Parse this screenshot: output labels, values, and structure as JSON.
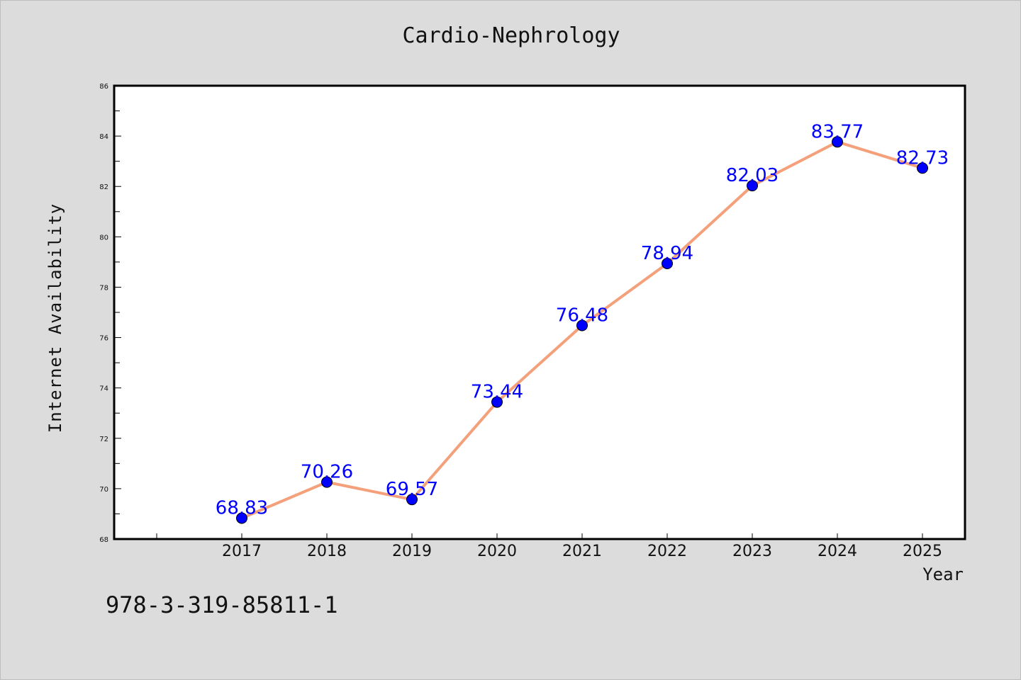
{
  "chart_data": {
    "type": "line",
    "title": "Cardio-Nephrology",
    "xlabel": "Year",
    "ylabel": "Internet Availability",
    "categories": [
      "2017",
      "2018",
      "2019",
      "2020",
      "2021",
      "2022",
      "2023",
      "2024",
      "2025"
    ],
    "series": [
      {
        "values": [
          68.83,
          70.26,
          69.57,
          73.44,
          76.48,
          78.94,
          82.03,
          83.77,
          82.73
        ],
        "data_labels": [
          "68.83",
          "70.26",
          "69.57",
          "73.44",
          "76.48",
          "78.94",
          "82.03",
          "83.77",
          "82.73"
        ],
        "line_color": "#f4a07a",
        "marker_color": "#0000ff",
        "label_color": "#0000ff"
      }
    ],
    "ylim": [
      68,
      86
    ],
    "yticks": [
      "68",
      "70",
      "72",
      "74",
      "76",
      "78",
      "80",
      "82",
      "84",
      "86"
    ],
    "grid": false,
    "legend": "none"
  },
  "footer_code": "978-3-319-85811-1"
}
